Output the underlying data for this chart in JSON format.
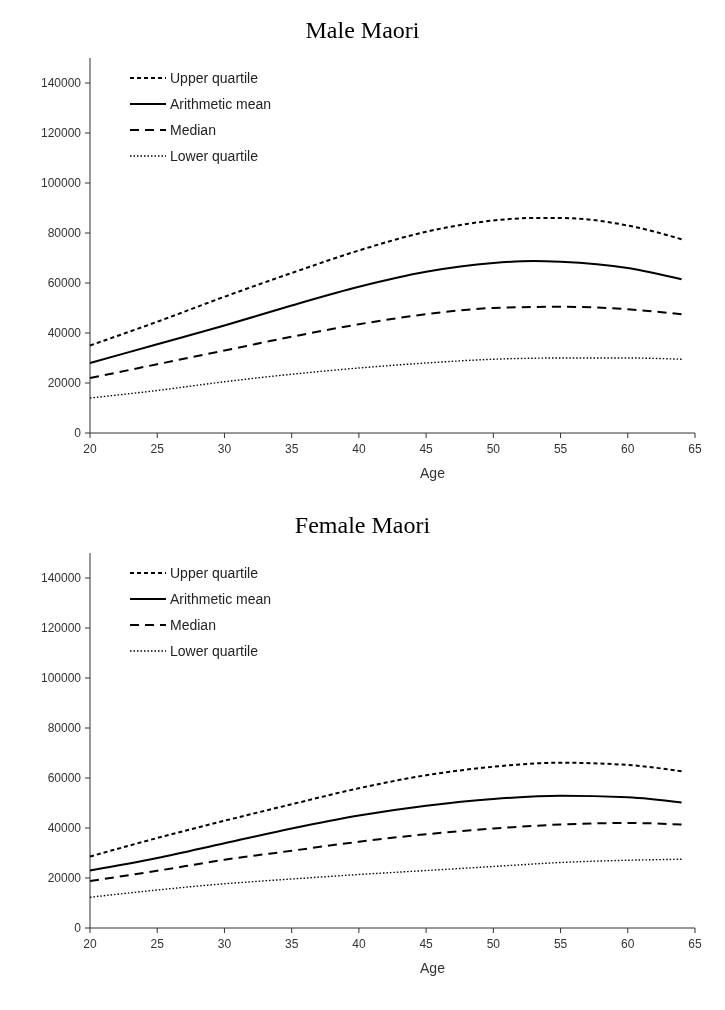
{
  "chart_data": [
    {
      "type": "line",
      "title": "Male Maori",
      "xlabel": "Age",
      "xlim": [
        20,
        65
      ],
      "xticks": [
        20,
        25,
        30,
        35,
        40,
        45,
        50,
        55,
        60,
        65
      ],
      "ylim": [
        0,
        150000
      ],
      "yticks": [
        0,
        20000,
        40000,
        60000,
        80000,
        100000,
        120000,
        140000
      ],
      "grid": false,
      "legend": "top left",
      "marker": "none",
      "series": [
        {
          "name": "Upper quartile",
          "color": "#000000",
          "line_style": "dashed",
          "x": [
            20,
            25,
            30,
            35,
            40,
            45,
            50,
            53,
            55,
            60,
            64
          ],
          "values": [
            35000,
            44500,
            54500,
            64000,
            73000,
            80500,
            85000,
            86000,
            86000,
            83000,
            77500
          ]
        },
        {
          "name": "Arithmetic mean",
          "color": "#000000",
          "line_style": "solid",
          "x": [
            20,
            25,
            30,
            35,
            40,
            45,
            50,
            53,
            55,
            60,
            64
          ],
          "values": [
            28000,
            35500,
            43000,
            51000,
            58500,
            64500,
            68000,
            68800,
            68500,
            66000,
            61500
          ]
        },
        {
          "name": "Median",
          "color": "#000000",
          "line_style": "dashed",
          "x": [
            20,
            25,
            30,
            35,
            40,
            45,
            50,
            55,
            60,
            64
          ],
          "values": [
            22000,
            27500,
            33000,
            38500,
            43500,
            47500,
            50000,
            50500,
            49500,
            47500
          ]
        },
        {
          "name": "Lower quartile",
          "color": "#000000",
          "line_style": "dotted",
          "x": [
            20,
            25,
            30,
            35,
            40,
            45,
            50,
            55,
            60,
            64
          ],
          "values": [
            14000,
            17000,
            20500,
            23500,
            26000,
            28000,
            29500,
            30000,
            30000,
            29500
          ]
        }
      ]
    },
    {
      "type": "line",
      "title": "Female Maori",
      "xlabel": "Age",
      "xlim": [
        20,
        65
      ],
      "xticks": [
        20,
        25,
        30,
        35,
        40,
        45,
        50,
        55,
        60,
        65
      ],
      "ylim": [
        0,
        150000
      ],
      "yticks": [
        0,
        20000,
        40000,
        60000,
        80000,
        100000,
        120000,
        140000
      ],
      "grid": false,
      "legend": "top left",
      "marker": "none",
      "series": [
        {
          "name": "Upper quartile",
          "color": "#000000",
          "line_style": "dashed",
          "x": [
            20,
            25,
            30,
            35,
            40,
            45,
            50,
            55,
            60,
            64
          ],
          "values": [
            28600,
            36000,
            42900,
            49500,
            55900,
            61100,
            64500,
            66100,
            65200,
            62700
          ]
        },
        {
          "name": "Arithmetic mean",
          "color": "#000000",
          "line_style": "solid",
          "x": [
            20,
            25,
            30,
            35,
            40,
            45,
            50,
            55,
            60,
            64
          ],
          "values": [
            23000,
            28000,
            33900,
            39800,
            45000,
            48900,
            51600,
            52900,
            52300,
            50200
          ]
        },
        {
          "name": "Median",
          "color": "#000000",
          "line_style": "dashed",
          "x": [
            20,
            25,
            30,
            35,
            40,
            45,
            50,
            55,
            60,
            64
          ],
          "values": [
            18800,
            22900,
            27300,
            30900,
            34500,
            37500,
            39800,
            41400,
            42000,
            41400
          ]
        },
        {
          "name": "Lower quartile",
          "color": "#000000",
          "line_style": "dotted",
          "x": [
            20,
            25,
            30,
            35,
            40,
            45,
            50,
            55,
            60,
            64
          ],
          "values": [
            12300,
            15200,
            17700,
            19600,
            21400,
            23000,
            24600,
            26200,
            27100,
            27500
          ]
        }
      ]
    }
  ]
}
